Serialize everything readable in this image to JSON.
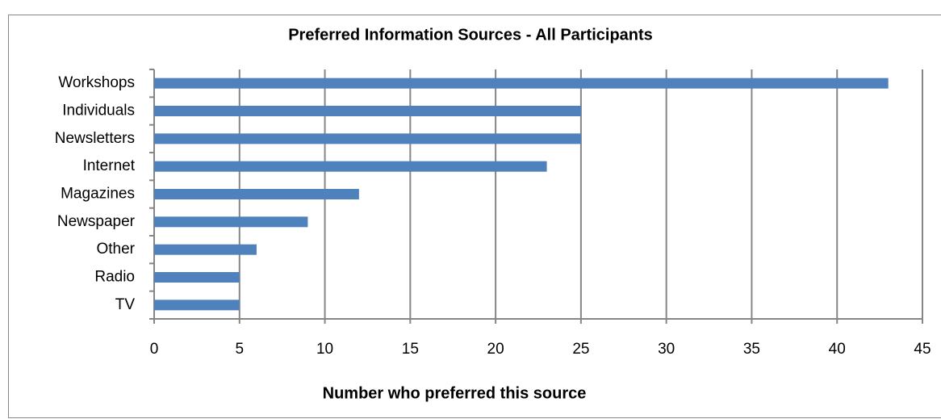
{
  "chart_data": {
    "type": "bar",
    "orientation": "horizontal",
    "title": "Preferred Information Sources - All Participants",
    "x_label": "Number who preferred this source",
    "categories": [
      "Workshops",
      "Individuals",
      "Newsletters",
      "Internet",
      "Magazines",
      "Newspaper",
      "Other",
      "Radio",
      "TV"
    ],
    "values": [
      43,
      25,
      25,
      23,
      12,
      9,
      6,
      5,
      5
    ],
    "color": "#4f81bd",
    "xlim": [
      0,
      45
    ],
    "xticks": [
      0,
      5,
      10,
      15,
      20,
      25,
      30,
      35,
      40,
      45
    ],
    "grid": true
  }
}
